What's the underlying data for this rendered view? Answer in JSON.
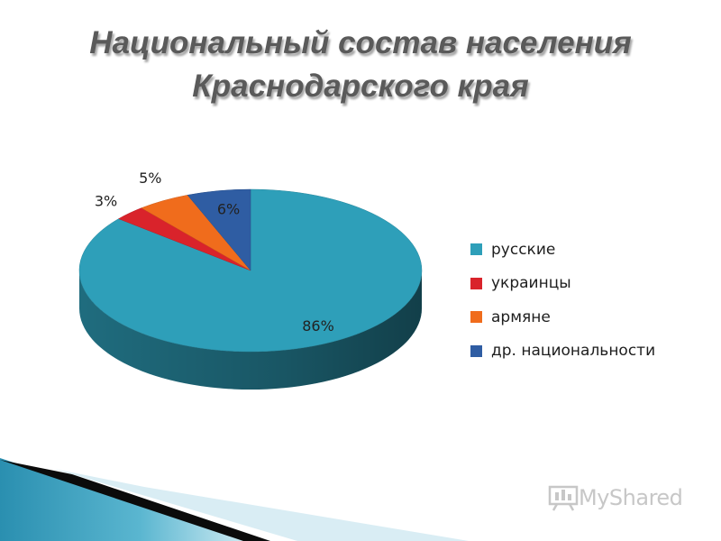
{
  "title_lines": [
    "Национальный состав населения",
    "Краснодарского края"
  ],
  "chart_data": {
    "type": "pie",
    "style": "3d",
    "title": "Национальный состав населения Краснодарского края",
    "legend_position": "right",
    "slices": [
      {
        "label": "русские",
        "value": 86,
        "value_label": "86%",
        "color": "#2e9fb9"
      },
      {
        "label": "украинцы",
        "value": 3,
        "value_label": "3%",
        "color": "#d9232b"
      },
      {
        "label": "армяне",
        "value": 5,
        "value_label": "5%",
        "color": "#f06c1c"
      },
      {
        "label": "др. национальности",
        "value": 6,
        "value_label": "6%",
        "color": "#2f5da3"
      }
    ]
  },
  "watermark": {
    "text": "MyShared",
    "icon": "presentation-board-icon"
  }
}
